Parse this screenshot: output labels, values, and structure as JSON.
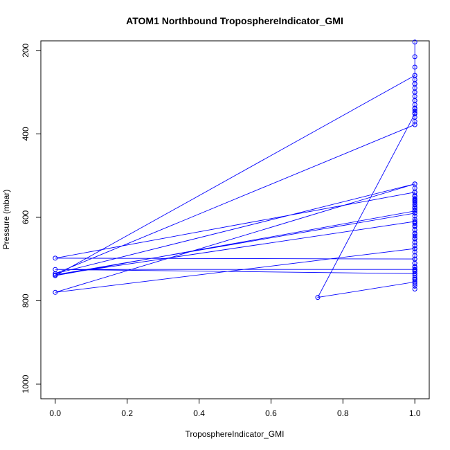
{
  "chart_data": {
    "type": "line",
    "title": "ATOM1 Northbound TroposphereIndicator_GMI",
    "xlabel": "TroposphereIndicator_GMI",
    "ylabel": "Pressure (mbar)",
    "xlim": [
      -0.04,
      1.04
    ],
    "ylim": [
      1035,
      177
    ],
    "y_reversed": true,
    "xticks": [
      0.0,
      0.2,
      0.4,
      0.6,
      0.8,
      1.0
    ],
    "xtick_labels": [
      "0.0",
      "0.2",
      "0.4",
      "0.6",
      "0.8",
      "1.0"
    ],
    "yticks": [
      200,
      400,
      600,
      800,
      1000
    ],
    "ytick_labels": [
      "200",
      "400",
      "600",
      "800",
      "1000"
    ],
    "grid": false,
    "legend": "none",
    "series": [
      {
        "color": "#0000ff",
        "marker": "open-circle",
        "x": [
          1,
          1,
          1,
          1,
          1,
          1,
          1,
          1,
          1,
          1,
          1,
          1,
          1,
          1,
          1,
          1,
          1,
          1,
          1,
          1,
          1,
          1,
          1,
          1,
          1,
          1,
          1,
          1,
          1,
          1,
          1,
          1,
          0,
          1,
          1,
          1,
          1,
          1,
          1,
          1,
          1,
          1,
          1,
          0,
          1,
          1,
          1,
          1,
          1,
          1,
          1,
          1,
          0,
          1,
          1,
          1,
          1,
          1,
          1,
          1,
          0,
          1,
          1,
          1,
          1,
          0.73,
          1,
          1,
          1,
          1,
          1,
          1,
          1,
          1,
          1,
          1,
          1,
          0,
          1,
          1,
          1,
          1,
          1,
          1,
          1,
          0,
          1,
          1,
          1,
          1,
          1,
          1,
          1,
          1,
          1,
          1,
          1,
          1
        ],
        "y": [
          772,
          765,
          760,
          755,
          748,
          740,
          735,
          725,
          718,
          710,
          700,
          692,
          683,
          675,
          668,
          660,
          650,
          640,
          630,
          620,
          612,
          605,
          597,
          590,
          582,
          575,
          565,
          558,
          550,
          540,
          530,
          520,
          780,
          675,
          668,
          660,
          652,
          645,
          638,
          630,
          622,
          615,
          610,
          738,
          590,
          585,
          578,
          570,
          562,
          555,
          548,
          540,
          698,
          700,
          710,
          720,
          725,
          730,
          728,
          725,
          725,
          735,
          745,
          750,
          755,
          792,
          352,
          345,
          338,
          330,
          320,
          310,
          300,
          290,
          280,
          270,
          260,
          740,
          585,
          578,
          570,
          560,
          550,
          540,
          520,
          735,
          378,
          370,
          360,
          350,
          340,
          320,
          300,
          280,
          260,
          240,
          215,
          180
        ]
      }
    ]
  }
}
